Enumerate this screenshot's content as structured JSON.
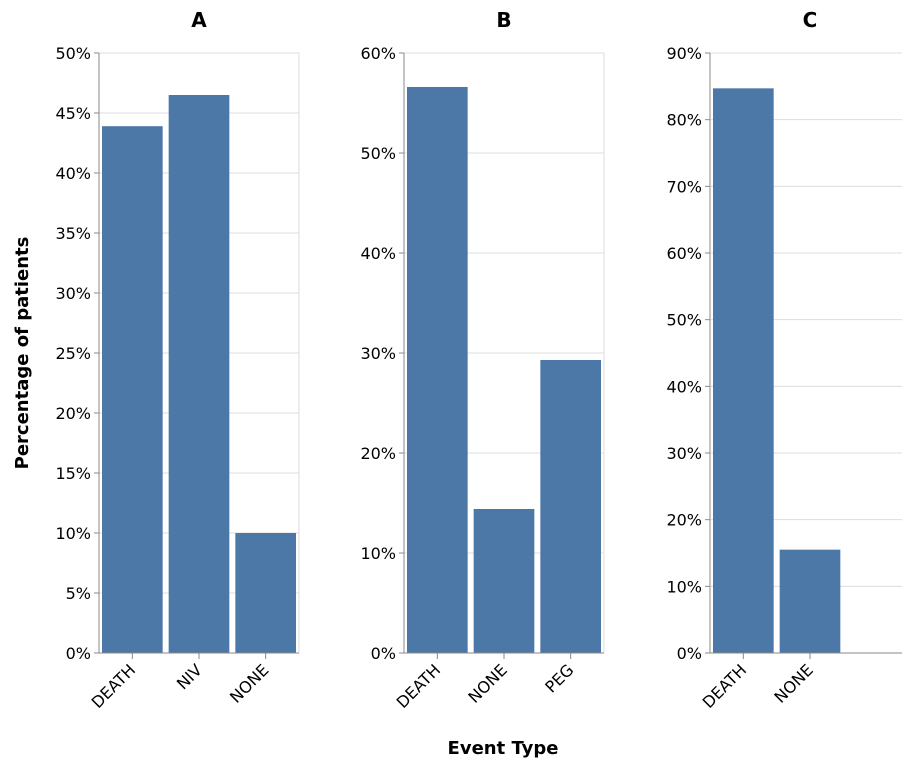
{
  "chart_data": [
    {
      "type": "bar",
      "title": "A",
      "categories": [
        "DEATH",
        "NIV",
        "NONE"
      ],
      "values": [
        43.9,
        46.5,
        10.0
      ],
      "ylim": [
        0,
        50
      ],
      "yticks": [
        "0%",
        "5%",
        "10%",
        "15%",
        "20%",
        "25%",
        "30%",
        "35%",
        "40%",
        "45%",
        "50%"
      ],
      "ylabel": "Percentage of patients",
      "grid": true
    },
    {
      "type": "bar",
      "title": "B",
      "categories": [
        "DEATH",
        "NONE",
        "PEG"
      ],
      "values": [
        56.6,
        14.4,
        29.3
      ],
      "ylim": [
        0,
        60
      ],
      "yticks": [
        "0%",
        "10%",
        "20%",
        "30%",
        "40%",
        "50%",
        "60%"
      ],
      "xlabel": "Event Type",
      "grid": true
    },
    {
      "type": "bar",
      "title": "C",
      "categories": [
        "DEATH",
        "NONE"
      ],
      "values": [
        84.7,
        15.5
      ],
      "ylim": [
        0,
        90
      ],
      "yticks": [
        "0%",
        "10%",
        "20%",
        "30%",
        "40%",
        "50%",
        "60%",
        "70%",
        "80%",
        "90%"
      ],
      "grid": true
    }
  ],
  "colors": {
    "bar": "#4c78a8",
    "grid": "#dddddd",
    "axis": "#888888"
  }
}
